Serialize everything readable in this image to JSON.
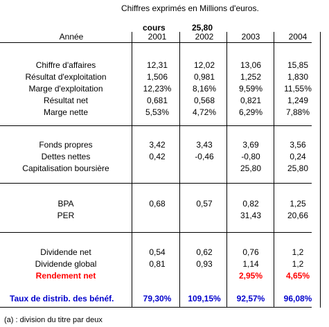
{
  "caption": "Chiffres exprimés en Millions d'euros.",
  "cours_label": "cours",
  "cours_value": "25,80",
  "year_label": "Année",
  "years": [
    "2001",
    "2002",
    "2003",
    "2004"
  ],
  "sections": [
    {
      "rows": [
        {
          "label": "Chiffre d'affaires",
          "values": [
            "12,31",
            "12,02",
            "13,06",
            "15,85"
          ]
        },
        {
          "label": "Résultat d'exploitation",
          "values": [
            "1,506",
            "0,981",
            "1,252",
            "1,830"
          ]
        },
        {
          "label": "Marge d'exploitation",
          "values": [
            "12,23%",
            "8,16%",
            "9,59%",
            "11,55%"
          ]
        },
        {
          "label": "Résultat net",
          "values": [
            "0,681",
            "0,568",
            "0,821",
            "1,249"
          ]
        },
        {
          "label": "Marge nette",
          "values": [
            "5,53%",
            "4,72%",
            "6,29%",
            "7,88%"
          ]
        }
      ]
    },
    {
      "rows": [
        {
          "label": "Fonds propres",
          "values": [
            "3,42",
            "3,43",
            "3,69",
            "3,56"
          ]
        },
        {
          "label": "Dettes nettes",
          "values": [
            "0,42",
            "-0,46",
            "-0,80",
            "0,24"
          ]
        },
        {
          "label": "Capitalisation boursière",
          "values": [
            "",
            "",
            "25,80",
            "25,80"
          ]
        }
      ]
    },
    {
      "rows": [
        {
          "label": "BPA",
          "values": [
            "0,68",
            "0,57",
            "0,82",
            "1,25"
          ]
        },
        {
          "label": "PER",
          "values": [
            "",
            "",
            "31,43",
            "20,66"
          ]
        }
      ]
    },
    {
      "rows": [
        {
          "label": "Dividende net",
          "values": [
            "0,54",
            "0,62",
            "0,76",
            "1,2"
          ]
        },
        {
          "label": "Dividende global",
          "values": [
            "0,81",
            "0,93",
            "1,14",
            "1,2"
          ]
        },
        {
          "label": "Rendement net",
          "values": [
            "",
            "",
            "2,95%",
            "4,65%"
          ]
        }
      ]
    }
  ],
  "payout": {
    "label": "Taux de distrib. des bénéf.",
    "values": [
      "79,30%",
      "109,15%",
      "92,57%",
      "96,08%"
    ]
  },
  "footnote": "(a) : division du titre par deux",
  "colors": {
    "highlight_red": "#ff0000",
    "highlight_blue": "#0000cc"
  }
}
